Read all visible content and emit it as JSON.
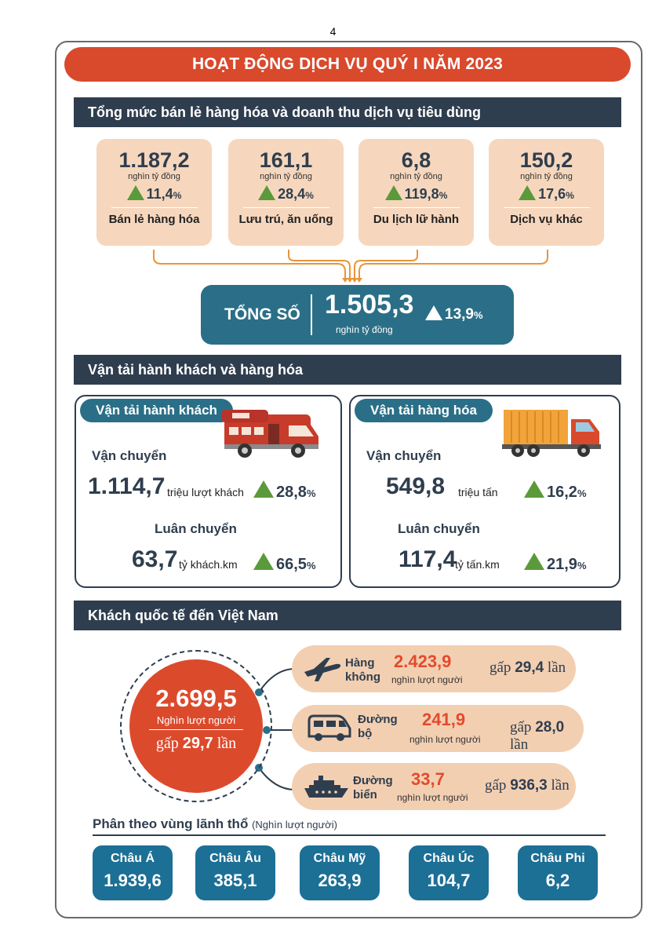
{
  "page_number": "4",
  "main_title": "HOẠT ĐỘNG DỊCH VỤ QUÝ I NĂM 2023",
  "retail": {
    "heading": "Tổng mức bán lẻ hàng hóa và doanh thu dịch vụ tiêu dùng",
    "cards": [
      {
        "value": "1.187,2",
        "unit": "nghìn tỷ đồng",
        "growth": "11,4",
        "pct": "%",
        "label": "Bán lẻ hàng hóa"
      },
      {
        "value": "161,1",
        "unit": "nghìn tỷ đồng",
        "growth": "28,4",
        "pct": "%",
        "label": "Lưu trú, ăn uống"
      },
      {
        "value": "6,8",
        "unit": "nghìn tỷ đồng",
        "growth": "119,8",
        "pct": "%",
        "label": "Du lịch lữ hành"
      },
      {
        "value": "150,2",
        "unit": "nghìn tỷ đồng",
        "growth": "17,6",
        "pct": "%",
        "label": "Dịch vụ khác"
      }
    ],
    "total": {
      "label": "TỔNG SỐ",
      "value": "1.505,3",
      "unit": "nghìn tỷ đồng",
      "growth": "13,9",
      "pct": "%"
    }
  },
  "transport": {
    "heading": "Vận tải hành khách và hàng hóa",
    "passenger": {
      "title": "Vận tải hành khách",
      "carry_label": "Vận chuyển",
      "carry_value": "1.114,7",
      "carry_unit": "triệu lượt khách",
      "carry_growth": "28,8",
      "pct": "%",
      "move_label": "Luân chuyển",
      "move_value": "63,7",
      "move_unit": "tỷ khách.km",
      "move_growth": "66,5"
    },
    "cargo": {
      "title": "Vận tải hàng hóa",
      "carry_label": "Vận chuyển",
      "carry_value": "549,8",
      "carry_unit": "triệu tấn",
      "carry_growth": "16,2",
      "pct": "%",
      "move_label": "Luân chuyển",
      "move_value": "117,4",
      "move_unit": "tỷ tấn.km",
      "move_growth": "21,9"
    },
    "colors": {
      "bus": "#c73b2b",
      "truck_body": "#f2a33a",
      "truck_cab": "#d9492c"
    }
  },
  "visitors": {
    "heading": "Khách quốc tế đến Việt Nam",
    "total_value": "2.699,5",
    "total_unit": "Nghìn lượt người",
    "total_ratio_prefix": "gấp",
    "total_ratio": "29,7",
    "total_ratio_suffix": "lần",
    "modes": [
      {
        "name1": "Hàng",
        "name2": "không",
        "value": "2.423,9",
        "unit": "nghìn lượt người",
        "ratio_prefix": "gấp",
        "ratio": "29,4",
        "ratio_suffix": "lần",
        "icon": "airplane-icon"
      },
      {
        "name1": "Đường",
        "name2": "bộ",
        "value": "241,9",
        "unit": "nghìn lượt người",
        "ratio_prefix": "gấp",
        "ratio": "28,0",
        "ratio_suffix": "lần",
        "icon": "van-icon"
      },
      {
        "name1": "Đường",
        "name2": "biển",
        "value": "33,7",
        "unit": "nghìn lượt người",
        "ratio_prefix": "gấp",
        "ratio": "936,3",
        "ratio_suffix": "lần",
        "icon": "ship-icon"
      }
    ],
    "regions_title": "Phân theo vùng lãnh thổ",
    "regions_unit": "(Nghìn lượt người)",
    "regions": [
      {
        "name": "Châu Á",
        "value": "1.939,6"
      },
      {
        "name": "Châu Âu",
        "value": "385,1"
      },
      {
        "name": "Châu Mỹ",
        "value": "263,9"
      },
      {
        "name": "Châu Úc",
        "value": "104,7"
      },
      {
        "name": "Châu Phi",
        "value": "6,2"
      }
    ]
  }
}
